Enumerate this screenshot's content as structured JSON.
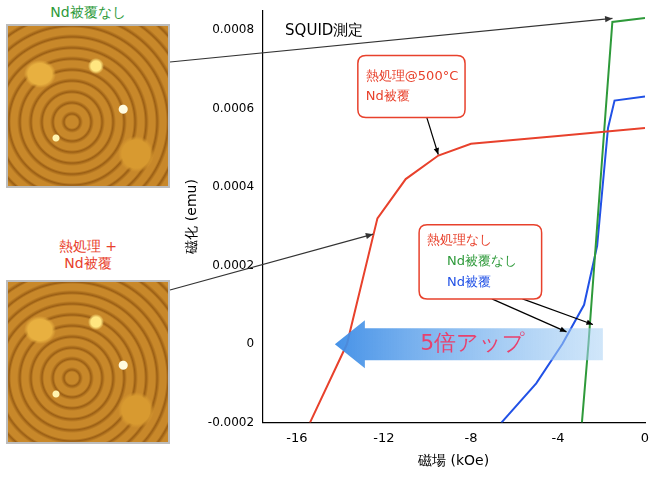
{
  "chart_data": {
    "type": "line",
    "title": "SQUID測定",
    "x_label": "磁場 (kOe)",
    "y_label": "磁化 (emu)",
    "xlim": [
      -17.6,
      0
    ],
    "xticks": [
      -16,
      -12,
      -8,
      -4,
      0
    ],
    "ylim": [
      -0.0002,
      0.00085
    ],
    "yticks": [
      -0.0002,
      0,
      0.0002,
      0.0004,
      0.0006,
      0.0008
    ],
    "grid": false,
    "series": [
      {
        "name": "熱処理@500°C Nd被覆",
        "color": "#e8412c",
        "x": [
          -15.4,
          -13.7,
          -12.3,
          -11.0,
          -9.5,
          -8.0,
          -4.0,
          0.0
        ],
        "values": [
          -0.0002,
          0.0,
          0.00032,
          0.00042,
          0.00048,
          0.00051,
          0.00053,
          0.00055
        ]
      },
      {
        "name": "Nd被覆なし",
        "color": "#2e9a3a",
        "x": [
          -2.9,
          -2.6,
          -2.2,
          -1.8,
          -1.5,
          0.0
        ],
        "values": [
          -0.0002,
          0.0,
          0.0003,
          0.0006,
          0.00082,
          0.00083
        ]
      },
      {
        "name": "Nd被覆",
        "color": "#2151e6",
        "x": [
          -6.6,
          -5.0,
          -3.8,
          -2.8,
          -2.2,
          -1.7,
          -1.4,
          0.0
        ],
        "values": [
          -0.0002,
          -0.0001,
          0.0,
          0.0001,
          0.00025,
          0.00055,
          0.00062,
          0.00063
        ]
      }
    ],
    "annotations": [
      {
        "text": "熱処理なし",
        "color": "#e8412c"
      },
      {
        "text": "5倍アップ",
        "color": "#e8416e"
      }
    ]
  },
  "images": [
    {
      "caption": "Nd被覆なし",
      "color": "#2e9a3a"
    },
    {
      "caption": "熱処理 + Nd被覆",
      "color": "#e8412c"
    }
  ]
}
